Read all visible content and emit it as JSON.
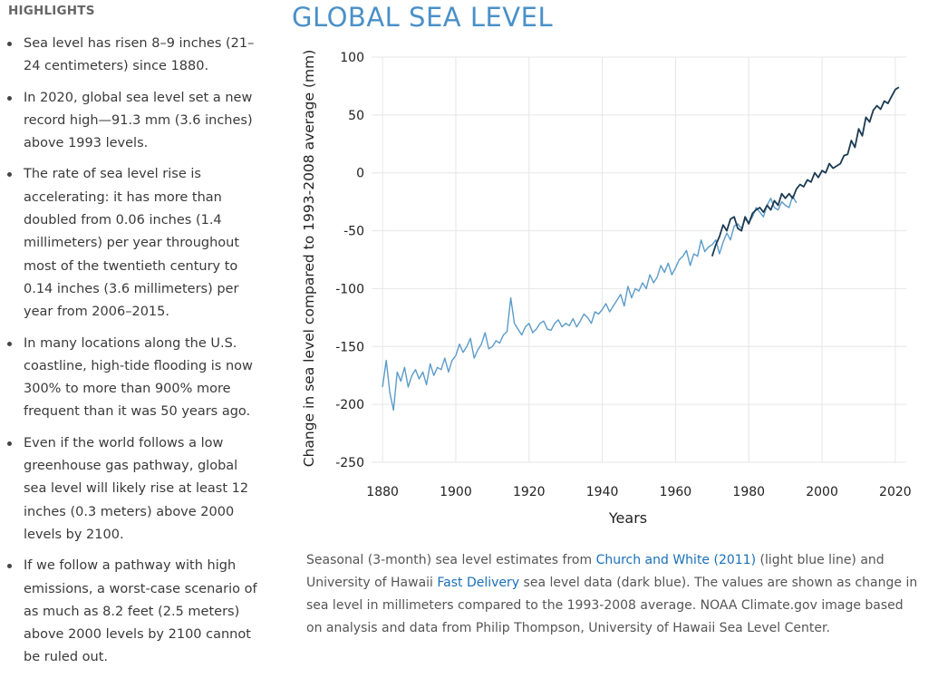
{
  "highlights": {
    "title": "HIGHLIGHTS",
    "items": [
      "Sea level has risen 8–9 inches (21–24 centimeters) since 1880.",
      "In 2020, global sea level set a new record high—91.3 mm (3.6 inches) above 1993 levels.",
      "The rate of sea level rise is accelerating: it has more than doubled from 0.06 inches (1.4 millimeters) per year throughout most of the twentieth century to 0.14 inches (3.6 millimeters) per year from 2006–2015.",
      "In many locations along the U.S. coastline, high-tide flooding is now 300% to more than 900% more frequent than it was 50 years ago.",
      "Even if the world follows a low greenhouse gas pathway, global sea level will likely rise at least 12 inches (0.3 meters) above 2000 levels by 2100.",
      "If we follow a pathway with high emissions,  a worst-case scenario of as much as 8.2 feet (2.5 meters) above 2000 levels by 2100 cannot be ruled out."
    ]
  },
  "caption": {
    "part1": "Seasonal (3-month) sea level estimates from ",
    "link1": "Church and White (2011)",
    "part2": " (light blue line) and University of Hawaii ",
    "link2": "Fast Delivery",
    "part3": " sea level data (dark blue). The values are shown as change in sea level in millimeters compared to the 1993-2008 average. NOAA Climate.gov image based on analysis and data from Philip Thompson, University of Hawaii Sea Level Center."
  },
  "colors": {
    "light_series": "#5b9bc9",
    "dark_series": "#1c3a52",
    "title": "#4a90c8",
    "grid": "#e6e6e6",
    "link": "#1a6fb8"
  },
  "chart_data": {
    "type": "line",
    "title": "GLOBAL SEA LEVEL",
    "xlabel": "Years",
    "ylabel": "Change in sea level compared to 1993-2008 average (mm)",
    "xlim": [
      1877,
      2023
    ],
    "ylim": [
      -250,
      100
    ],
    "x_ticks": [
      1880,
      1900,
      1920,
      1940,
      1960,
      1980,
      2000,
      2020
    ],
    "y_ticks": [
      100,
      50,
      0,
      -50,
      -100,
      -150,
      -200,
      -250
    ],
    "grid": true,
    "series": [
      {
        "color": "#5b9bc9",
        "x": [
          1880,
          1881,
          1882,
          1883,
          1884,
          1885,
          1886,
          1887,
          1888,
          1889,
          1890,
          1891,
          1892,
          1893,
          1894,
          1895,
          1896,
          1897,
          1898,
          1899,
          1900,
          1901,
          1902,
          1903,
          1904,
          1905,
          1906,
          1907,
          1908,
          1909,
          1910,
          1911,
          1912,
          1913,
          1914,
          1915,
          1916,
          1917,
          1918,
          1919,
          1920,
          1921,
          1922,
          1923,
          1924,
          1925,
          1926,
          1927,
          1928,
          1929,
          1930,
          1931,
          1932,
          1933,
          1934,
          1935,
          1936,
          1937,
          1938,
          1939,
          1940,
          1941,
          1942,
          1943,
          1944,
          1945,
          1946,
          1947,
          1948,
          1949,
          1950,
          1951,
          1952,
          1953,
          1954,
          1955,
          1956,
          1957,
          1958,
          1959,
          1960,
          1961,
          1962,
          1963,
          1964,
          1965,
          1966,
          1967,
          1968,
          1969,
          1970,
          1971,
          1972,
          1973,
          1974,
          1975,
          1976,
          1977,
          1978,
          1979,
          1980,
          1981,
          1982,
          1983,
          1984,
          1985,
          1986,
          1987,
          1988,
          1989,
          1990,
          1991,
          1992,
          1993
        ],
        "y": [
          -185,
          -162,
          -190,
          -205,
          -172,
          -180,
          -168,
          -185,
          -175,
          -170,
          -178,
          -172,
          -183,
          -165,
          -175,
          -168,
          -170,
          -160,
          -172,
          -162,
          -158,
          -148,
          -155,
          -150,
          -143,
          -160,
          -153,
          -148,
          -138,
          -152,
          -150,
          -145,
          -147,
          -140,
          -137,
          -108,
          -130,
          -135,
          -140,
          -133,
          -130,
          -138,
          -135,
          -130,
          -128,
          -135,
          -136,
          -130,
          -127,
          -133,
          -130,
          -132,
          -126,
          -133,
          -128,
          -122,
          -125,
          -130,
          -120,
          -122,
          -118,
          -113,
          -120,
          -115,
          -110,
          -105,
          -115,
          -98,
          -108,
          -100,
          -102,
          -95,
          -100,
          -88,
          -95,
          -90,
          -80,
          -86,
          -78,
          -88,
          -82,
          -75,
          -72,
          -67,
          -80,
          -70,
          -72,
          -58,
          -68,
          -64,
          -62,
          -58,
          -70,
          -60,
          -52,
          -58,
          -46,
          -44,
          -48,
          -40,
          -43,
          -38,
          -30,
          -34,
          -38,
          -28,
          -22,
          -30,
          -32,
          -25,
          -28,
          -30,
          -20,
          -26
        ]
      },
      {
        "color": "#1c3a52",
        "x": [
          1970,
          1971,
          1972,
          1973,
          1974,
          1975,
          1976,
          1977,
          1978,
          1979,
          1980,
          1981,
          1982,
          1983,
          1984,
          1985,
          1986,
          1987,
          1988,
          1989,
          1990,
          1991,
          1992,
          1993,
          1994,
          1995,
          1996,
          1997,
          1998,
          1999,
          2000,
          2001,
          2002,
          2003,
          2004,
          2005,
          2006,
          2007,
          2008,
          2009,
          2010,
          2011,
          2012,
          2013,
          2014,
          2015,
          2016,
          2017,
          2018,
          2019,
          2020,
          2021
        ],
        "y": [
          -72,
          -62,
          -55,
          -45,
          -50,
          -40,
          -38,
          -48,
          -50,
          -38,
          -44,
          -35,
          -32,
          -30,
          -34,
          -28,
          -32,
          -24,
          -28,
          -18,
          -22,
          -18,
          -22,
          -14,
          -10,
          -12,
          -6,
          -8,
          0,
          -4,
          2,
          0,
          8,
          4,
          6,
          8,
          15,
          16,
          28,
          22,
          38,
          32,
          48,
          44,
          54,
          58,
          55,
          62,
          60,
          66,
          72,
          74
        ]
      }
    ]
  }
}
